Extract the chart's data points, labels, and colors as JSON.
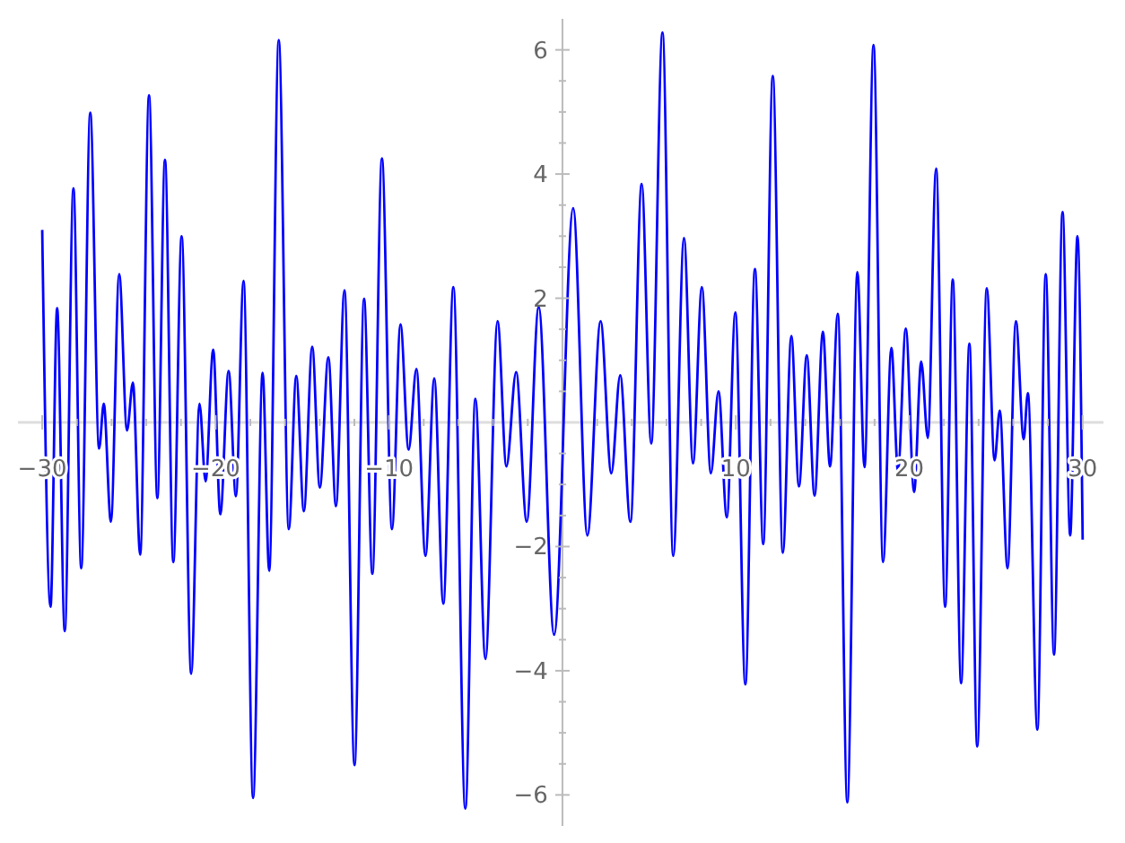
{
  "chart_data": {
    "type": "line",
    "x": [
      -30,
      -29.52,
      -29.14,
      -28.7,
      -28.2,
      -27.75,
      -27.23,
      -26.72,
      -26.45,
      -26.04,
      -25.56,
      -25.11,
      -24.77,
      -24.35,
      -23.84,
      -23.36,
      -22.92,
      -22.44,
      -21.96,
      -21.41,
      -20.93,
      -20.58,
      -20.14,
      -19.73,
      -19.25,
      -18.83,
      -18.39,
      -17.84,
      -17.29,
      -16.91,
      -16.36,
      -15.78,
      -15.35,
      -14.91,
      -14.43,
      -13.99,
      -13.5,
      -13.06,
      -12.57,
      -11.99,
      -11.44,
      -10.96,
      -10.41,
      -9.83,
      -9.34,
      -8.87,
      -8.42,
      -7.9,
      -7.39,
      -6.87,
      -6.29,
      -5.6,
      -5.02,
      -4.44,
      -3.74,
      -3.23,
      -2.67,
      -2.06,
      -1.37,
      -0.48,
      0.62,
      1.44,
      2.2,
      2.82,
      3.33,
      3.92,
      4.57,
      5.12,
      5.77,
      6.39,
      7.01,
      7.53,
      8.04,
      8.56,
      9.0,
      9.48,
      9.97,
      10.55,
      11.1,
      11.58,
      12.13,
      12.71,
      13.2,
      13.64,
      14.09,
      14.54,
      15.02,
      15.43,
      15.88,
      16.43,
      17.01,
      17.42,
      17.94,
      18.49,
      18.97,
      19.35,
      19.8,
      20.28,
      20.69,
      21.07,
      21.55,
      22.07,
      22.51,
      22.99,
      23.47,
      23.92,
      24.47,
      24.92,
      25.22,
      25.67,
      26.15,
      26.6,
      26.84,
      27.39,
      27.87,
      28.35,
      28.84,
      29.28,
      29.7,
      30
    ],
    "series": [
      {
        "color": "#0000ff",
        "values": [
          3.1,
          -2.97,
          1.84,
          -3.36,
          3.77,
          -2.35,
          4.99,
          -0.42,
          0.3,
          -1.6,
          2.39,
          -0.13,
          0.64,
          -2.13,
          5.27,
          -1.22,
          4.23,
          -2.25,
          3.0,
          -4.05,
          0.3,
          -0.95,
          1.17,
          -1.48,
          0.83,
          -1.19,
          2.28,
          -6.05,
          0.8,
          -2.39,
          6.16,
          -1.72,
          0.75,
          -1.43,
          1.22,
          -1.05,
          1.05,
          -1.35,
          2.13,
          -5.52,
          1.99,
          -2.44,
          4.25,
          -1.72,
          1.58,
          -0.44,
          0.86,
          -2.15,
          0.71,
          -2.92,
          2.18,
          -6.22,
          0.38,
          -3.81,
          1.63,
          -0.71,
          0.81,
          -1.6,
          1.86,
          -3.42,
          3.45,
          -1.82,
          1.63,
          -0.82,
          0.76,
          -1.6,
          3.84,
          -0.34,
          6.28,
          -2.15,
          2.97,
          -0.66,
          2.18,
          -0.82,
          0.5,
          -1.53,
          1.77,
          -4.22,
          2.47,
          -1.96,
          5.58,
          -2.1,
          1.39,
          -1.03,
          1.08,
          -1.18,
          1.46,
          -0.71,
          1.75,
          -6.12,
          2.42,
          -0.72,
          6.08,
          -2.25,
          1.2,
          -0.78,
          1.51,
          -1.12,
          0.98,
          -0.25,
          4.09,
          -2.97,
          2.3,
          -4.2,
          1.27,
          -5.22,
          2.16,
          -0.61,
          0.19,
          -2.35,
          1.63,
          -0.27,
          0.47,
          -4.95,
          2.39,
          -3.74,
          3.39,
          -1.82,
          3.0,
          -1.89
        ]
      }
    ],
    "xlim": [
      -31.4,
      31.2
    ],
    "ylim": [
      -6.5,
      6.5
    ],
    "xticks": [
      {
        "value": -30,
        "label": "−30"
      },
      {
        "value": -28,
        "label": null
      },
      {
        "value": -26,
        "label": null
      },
      {
        "value": -24,
        "label": null
      },
      {
        "value": -22,
        "label": null
      },
      {
        "value": -20,
        "label": "−20"
      },
      {
        "value": -18,
        "label": null
      },
      {
        "value": -16,
        "label": null
      },
      {
        "value": -14,
        "label": null
      },
      {
        "value": -12,
        "label": null
      },
      {
        "value": -10,
        "label": "−10"
      },
      {
        "value": -8,
        "label": null
      },
      {
        "value": -6,
        "label": null
      },
      {
        "value": -4,
        "label": null
      },
      {
        "value": -2,
        "label": null
      },
      {
        "value": 2,
        "label": null
      },
      {
        "value": 4,
        "label": null
      },
      {
        "value": 6,
        "label": null
      },
      {
        "value": 8,
        "label": null
      },
      {
        "value": 10,
        "label": "10"
      },
      {
        "value": 12,
        "label": null
      },
      {
        "value": 14,
        "label": null
      },
      {
        "value": 16,
        "label": null
      },
      {
        "value": 18,
        "label": null
      },
      {
        "value": 20,
        "label": "20"
      },
      {
        "value": 22,
        "label": null
      },
      {
        "value": 24,
        "label": null
      },
      {
        "value": 26,
        "label": null
      },
      {
        "value": 28,
        "label": null
      },
      {
        "value": 30,
        "label": "30"
      }
    ],
    "yticks": [
      {
        "value": -6,
        "label": "−6"
      },
      {
        "value": -5.5,
        "label": null
      },
      {
        "value": -5,
        "label": null
      },
      {
        "value": -4.5,
        "label": null
      },
      {
        "value": -4,
        "label": "−4"
      },
      {
        "value": -3.5,
        "label": null
      },
      {
        "value": -3,
        "label": null
      },
      {
        "value": -2.5,
        "label": null
      },
      {
        "value": -2,
        "label": "−2"
      },
      {
        "value": -1.5,
        "label": null
      },
      {
        "value": -1,
        "label": null
      },
      {
        "value": -0.5,
        "label": null
      },
      {
        "value": 0.5,
        "label": null
      },
      {
        "value": 1,
        "label": null
      },
      {
        "value": 1.5,
        "label": null
      },
      {
        "value": 2,
        "label": "2"
      },
      {
        "value": 2.5,
        "label": null
      },
      {
        "value": 3,
        "label": null
      },
      {
        "value": 3.5,
        "label": null
      },
      {
        "value": 4,
        "label": "4"
      },
      {
        "value": 4.5,
        "label": null
      },
      {
        "value": 5,
        "label": null
      },
      {
        "value": 5.5,
        "label": null
      },
      {
        "value": 6,
        "label": "6"
      }
    ]
  }
}
